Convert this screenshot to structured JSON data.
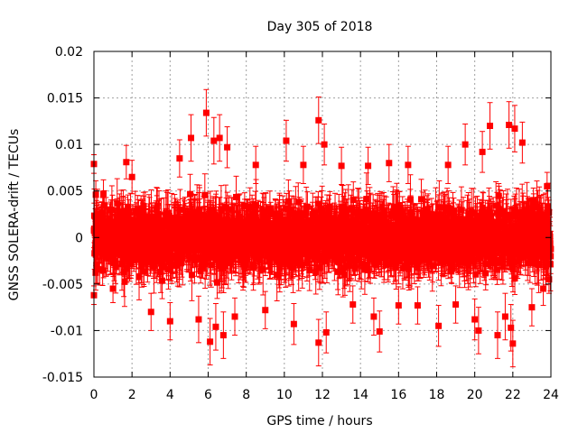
{
  "chart_data": {
    "type": "scatter",
    "title": "Day 305 of 2018",
    "xlabel": "GPS time / hours",
    "ylabel": "GNSS SOLERA-drift / TECUs",
    "xlim": [
      0,
      24
    ],
    "ylim": [
      -0.015,
      0.02
    ],
    "grid": true,
    "x_ticks": [
      0,
      2,
      4,
      6,
      8,
      10,
      12,
      14,
      16,
      18,
      20,
      22,
      24
    ],
    "x_tick_labels": [
      "0",
      "2",
      "4",
      "6",
      "8",
      "10",
      "12",
      "14",
      "16",
      "18",
      "20",
      "22",
      "24"
    ],
    "y_ticks": [
      -0.015,
      -0.01,
      -0.005,
      0,
      0.005,
      0.01,
      0.015,
      0.02
    ],
    "y_tick_labels": [
      "-0.015",
      "-0.01",
      "-0.005",
      "0",
      "0.005",
      "0.01",
      "0.015",
      "0.02"
    ],
    "series_color": "#ff0000",
    "series": [
      {
        "name": "SOLERA-drift",
        "description": "Dense noise band around zero with error bars; highlighted outliers listed below, remaining points approximate the band (mean 0, spread about ±0.004).",
        "band_mean": 0,
        "band_spread": 0.004,
        "points": [
          {
            "x": 0.0,
            "y": 0.0079,
            "err": 0.001
          },
          {
            "x": 0.0,
            "y": -0.0062,
            "err": 0.001
          },
          {
            "x": 0.1,
            "y": 0.0046,
            "err": 0.0015
          },
          {
            "x": 0.1,
            "y": 0.0016,
            "err": 0.0015
          },
          {
            "x": 0.2,
            "y": -0.0034,
            "err": 0.0015
          },
          {
            "x": 0.5,
            "y": 0.0047,
            "err": 0.0015
          },
          {
            "x": 1.0,
            "y": -0.0055,
            "err": 0.0015
          },
          {
            "x": 1.7,
            "y": 0.0081,
            "err": 0.0018
          },
          {
            "x": 2.0,
            "y": 0.0065,
            "err": 0.0018
          },
          {
            "x": 3.0,
            "y": -0.008,
            "err": 0.002
          },
          {
            "x": 4.0,
            "y": -0.009,
            "err": 0.002
          },
          {
            "x": 4.5,
            "y": 0.0085,
            "err": 0.002
          },
          {
            "x": 5.1,
            "y": 0.0107,
            "err": 0.0025
          },
          {
            "x": 5.5,
            "y": -0.0088,
            "err": 0.0025
          },
          {
            "x": 5.9,
            "y": 0.0134,
            "err": 0.0025
          },
          {
            "x": 6.1,
            "y": -0.0112,
            "err": 0.0025
          },
          {
            "x": 6.3,
            "y": 0.0104,
            "err": 0.0025
          },
          {
            "x": 6.4,
            "y": -0.0096,
            "err": 0.0025
          },
          {
            "x": 6.6,
            "y": 0.0107,
            "err": 0.0025
          },
          {
            "x": 6.8,
            "y": -0.0105,
            "err": 0.0025
          },
          {
            "x": 7.0,
            "y": 0.0097,
            "err": 0.0022
          },
          {
            "x": 7.4,
            "y": -0.0085,
            "err": 0.002
          },
          {
            "x": 8.5,
            "y": 0.0078,
            "err": 0.002
          },
          {
            "x": 9.0,
            "y": -0.0078,
            "err": 0.002
          },
          {
            "x": 10.1,
            "y": 0.0104,
            "err": 0.0022
          },
          {
            "x": 10.5,
            "y": -0.0093,
            "err": 0.0022
          },
          {
            "x": 11.0,
            "y": 0.0078,
            "err": 0.002
          },
          {
            "x": 11.8,
            "y": 0.0126,
            "err": 0.0025
          },
          {
            "x": 11.8,
            "y": -0.0113,
            "err": 0.0025
          },
          {
            "x": 12.1,
            "y": 0.01,
            "err": 0.0022
          },
          {
            "x": 12.2,
            "y": -0.0102,
            "err": 0.0022
          },
          {
            "x": 13.0,
            "y": 0.0077,
            "err": 0.002
          },
          {
            "x": 13.6,
            "y": -0.0072,
            "err": 0.002
          },
          {
            "x": 14.4,
            "y": 0.0077,
            "err": 0.002
          },
          {
            "x": 14.7,
            "y": -0.0085,
            "err": 0.002
          },
          {
            "x": 15.0,
            "y": -0.0101,
            "err": 0.0022
          },
          {
            "x": 15.5,
            "y": 0.008,
            "err": 0.002
          },
          {
            "x": 16.0,
            "y": -0.0073,
            "err": 0.002
          },
          {
            "x": 16.5,
            "y": 0.0078,
            "err": 0.002
          },
          {
            "x": 17.0,
            "y": -0.0073,
            "err": 0.002
          },
          {
            "x": 18.1,
            "y": -0.0095,
            "err": 0.0022
          },
          {
            "x": 18.6,
            "y": 0.0078,
            "err": 0.002
          },
          {
            "x": 19.0,
            "y": -0.0072,
            "err": 0.002
          },
          {
            "x": 19.5,
            "y": 0.01,
            "err": 0.0022
          },
          {
            "x": 20.0,
            "y": -0.0088,
            "err": 0.0022
          },
          {
            "x": 20.2,
            "y": -0.01,
            "err": 0.0025
          },
          {
            "x": 20.4,
            "y": 0.0092,
            "err": 0.0022
          },
          {
            "x": 20.8,
            "y": 0.012,
            "err": 0.0025
          },
          {
            "x": 21.2,
            "y": -0.0105,
            "err": 0.0025
          },
          {
            "x": 21.6,
            "y": -0.0085,
            "err": 0.0025
          },
          {
            "x": 21.8,
            "y": 0.0121,
            "err": 0.0025
          },
          {
            "x": 21.9,
            "y": -0.0097,
            "err": 0.0025
          },
          {
            "x": 22.0,
            "y": -0.0114,
            "err": 0.0025
          },
          {
            "x": 22.1,
            "y": 0.0117,
            "err": 0.0025
          },
          {
            "x": 22.5,
            "y": 0.0102,
            "err": 0.0022
          },
          {
            "x": 23.0,
            "y": -0.0075,
            "err": 0.002
          },
          {
            "x": 23.6,
            "y": -0.0055,
            "err": 0.0018
          },
          {
            "x": 23.8,
            "y": 0.0055,
            "err": 0.0015
          },
          {
            "x": 23.9,
            "y": -0.0045,
            "err": 0.0015
          }
        ]
      }
    ]
  }
}
